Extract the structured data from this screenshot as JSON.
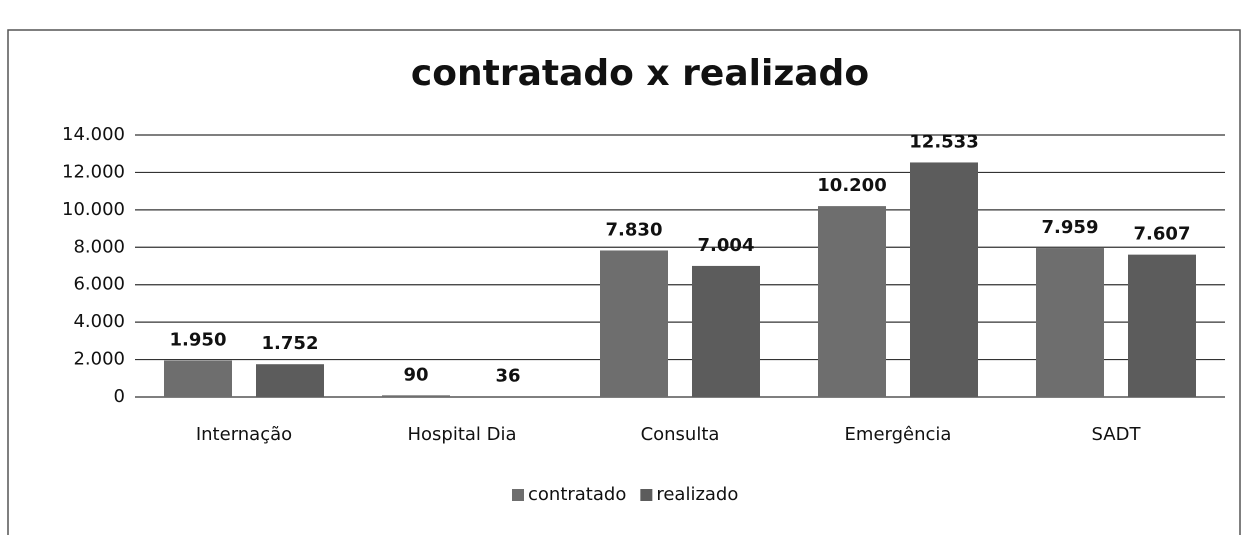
{
  "chart_data": {
    "type": "bar",
    "title": "contratado x realizado",
    "categories": [
      "Internação",
      "Hospital Dia",
      "Consulta",
      "Emergência",
      "SADT"
    ],
    "series": [
      {
        "name": "contratado",
        "color": "#6e6e6e",
        "values": [
          1950,
          90,
          7830,
          10200,
          7959
        ],
        "value_labels": [
          "1.950",
          "90",
          "7.830",
          "10.200",
          "7.959"
        ]
      },
      {
        "name": "realizado",
        "color": "#5c5c5c",
        "values": [
          1752,
          36,
          7004,
          12533,
          7607
        ],
        "value_labels": [
          "1.752",
          "36",
          "7.004",
          "12.533",
          "7.607"
        ]
      }
    ],
    "ylim": [
      0,
      14000
    ],
    "yticks": [
      0,
      {
        "value": 2000,
        "label": "2.000"
      },
      {
        "value": 4000,
        "label": "4.000"
      },
      {
        "value": 6000,
        "label": "6.000"
      },
      {
        "value": 8000,
        "label": "8.000"
      },
      {
        "value": 10000,
        "label": "10.000"
      },
      {
        "value": 12000,
        "label": "12.000"
      },
      {
        "value": 14000,
        "label": "14.000"
      }
    ],
    "grid": true,
    "legend": "bottom"
  }
}
